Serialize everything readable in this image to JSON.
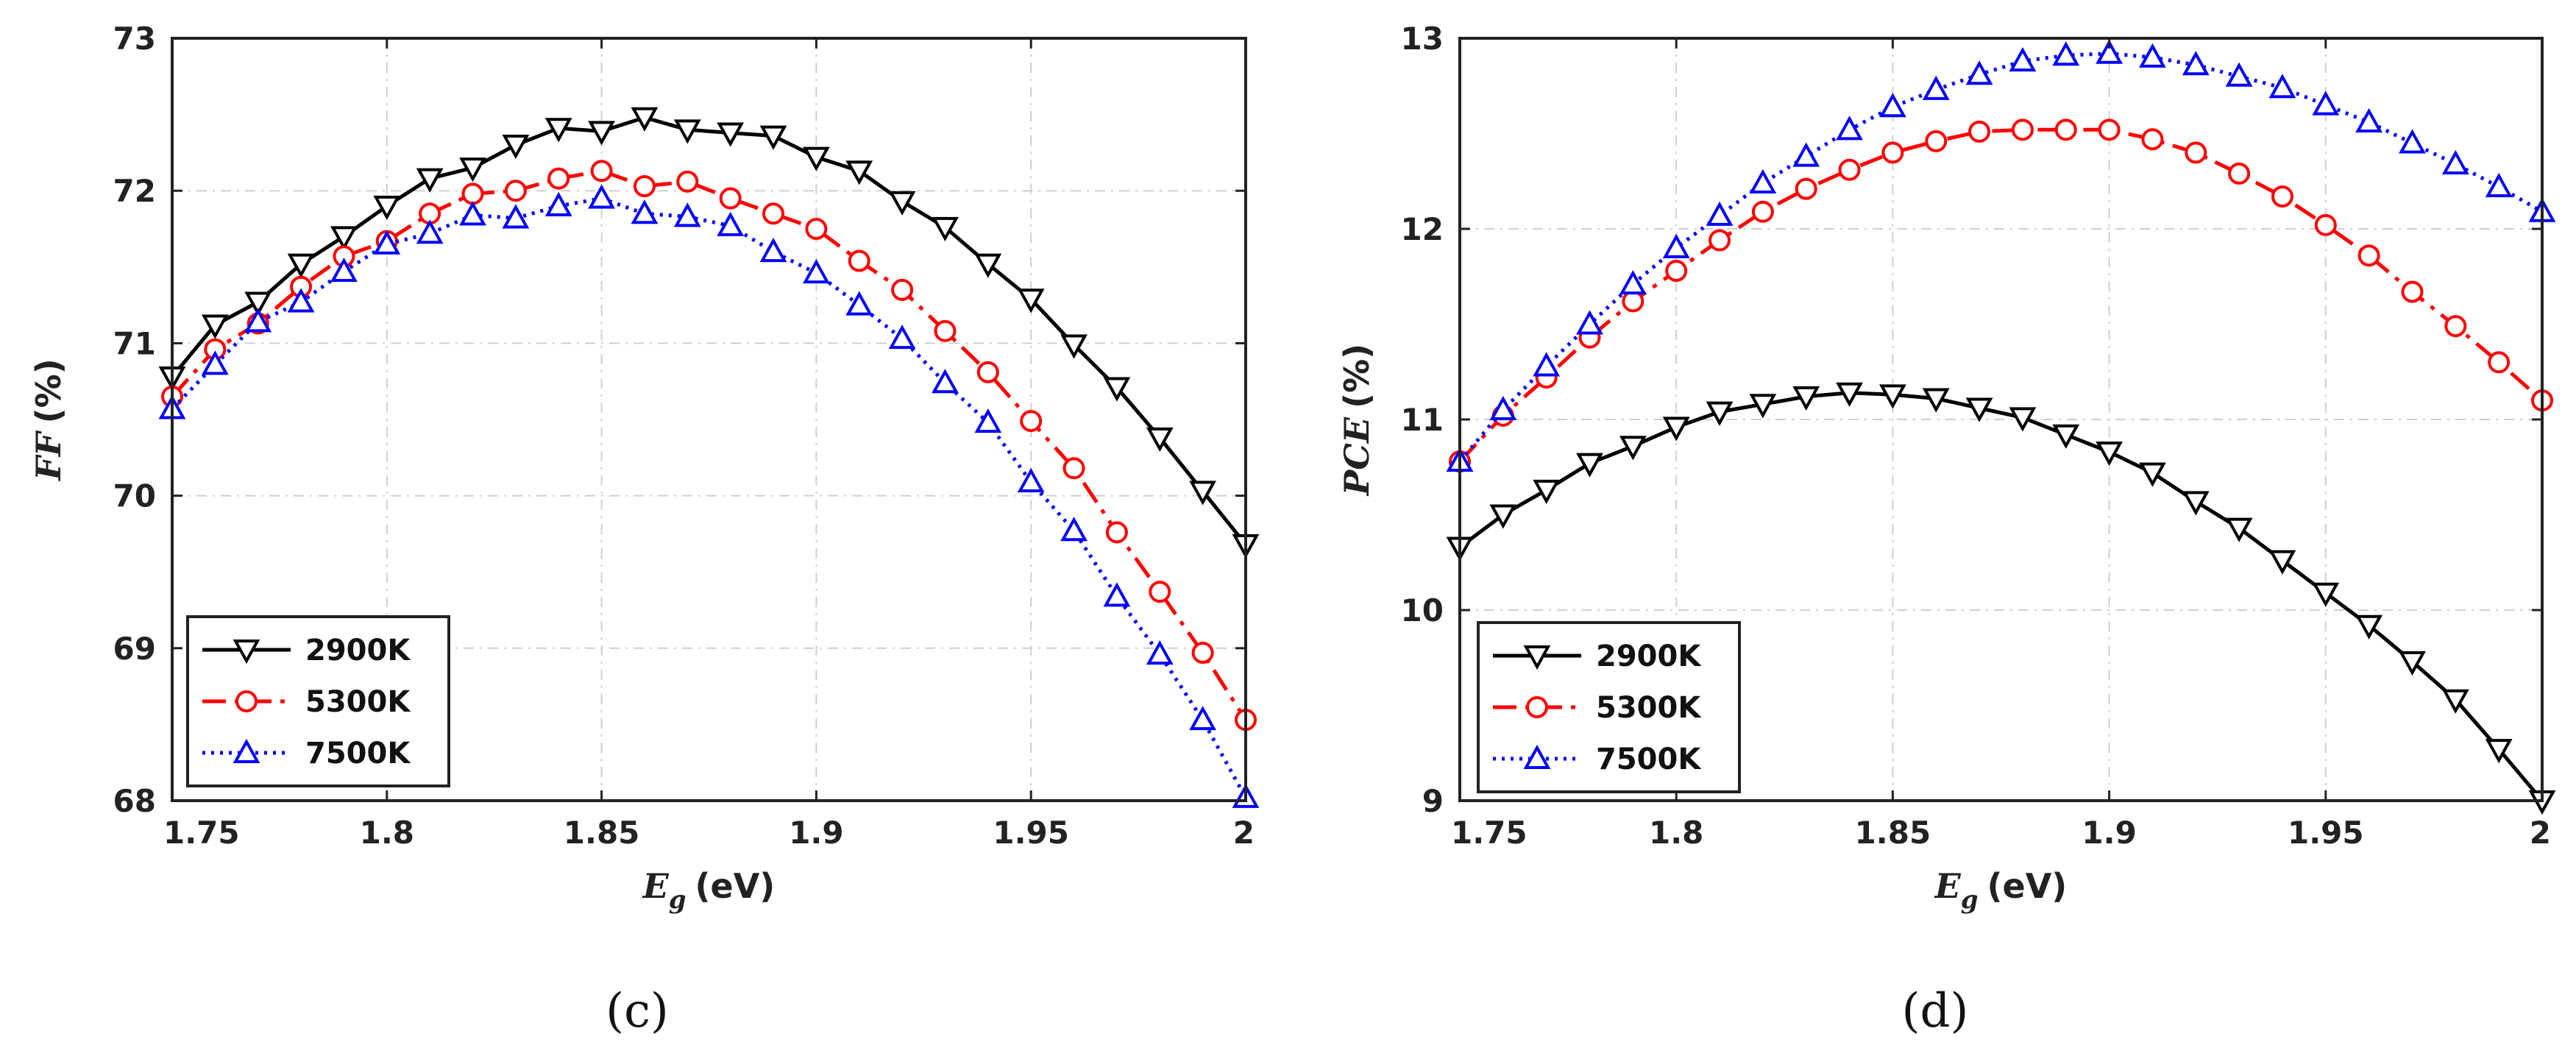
{
  "chart_data": [
    {
      "type": "line",
      "panel": "(c)",
      "ylabel_main": "FF",
      "ylabel_unit": "(%)",
      "xlabel_main": "E",
      "xlabel_sub": "g",
      "xlabel_unit": "(eV)",
      "xlim": [
        1.75,
        2.0
      ],
      "ylim": [
        68,
        73
      ],
      "xticks": [
        "1.75",
        "1.8",
        "1.85",
        "1.9",
        "1.95",
        "2"
      ],
      "xtick_values": [
        1.75,
        1.8,
        1.85,
        1.9,
        1.95,
        2.0
      ],
      "yticks": [
        "68",
        "69",
        "70",
        "71",
        "72",
        "73"
      ],
      "ytick_values": [
        68,
        69,
        70,
        71,
        72,
        73
      ],
      "grid": true,
      "legend_position": "bottom-left",
      "x": [
        1.75,
        1.76,
        1.77,
        1.78,
        1.79,
        1.8,
        1.81,
        1.82,
        1.83,
        1.84,
        1.85,
        1.86,
        1.87,
        1.88,
        1.89,
        1.9,
        1.91,
        1.92,
        1.93,
        1.94,
        1.95,
        1.96,
        1.97,
        1.98,
        1.99,
        2.0
      ],
      "series": [
        {
          "name": "2900K",
          "color": "#000000",
          "dash": "solid",
          "marker": "triangle-down",
          "values": [
            70.78,
            71.12,
            71.27,
            71.52,
            71.7,
            71.9,
            72.08,
            72.15,
            72.3,
            72.41,
            72.39,
            72.48,
            72.4,
            72.38,
            72.36,
            72.22,
            72.13,
            71.93,
            71.76,
            71.52,
            71.29,
            70.99,
            70.71,
            70.38,
            70.03,
            69.68
          ]
        },
        {
          "name": "5300K",
          "color": "#ff0000",
          "dash": "dashdot",
          "marker": "circle",
          "values": [
            70.65,
            70.96,
            71.13,
            71.37,
            71.57,
            71.67,
            71.85,
            71.98,
            72.0,
            72.08,
            72.13,
            72.03,
            72.06,
            71.95,
            71.85,
            71.75,
            71.54,
            71.35,
            71.08,
            70.81,
            70.49,
            70.18,
            69.76,
            69.37,
            68.97,
            68.53
          ]
        },
        {
          "name": "7500K",
          "color": "#0000ff",
          "dash": "dotted",
          "marker": "triangle-up",
          "values": [
            70.57,
            70.86,
            71.14,
            71.27,
            71.47,
            71.65,
            71.72,
            71.84,
            71.82,
            71.9,
            71.95,
            71.85,
            71.83,
            71.77,
            71.6,
            71.46,
            71.25,
            71.03,
            70.74,
            70.48,
            70.09,
            69.77,
            69.34,
            68.96,
            68.53,
            68.02
          ]
        }
      ]
    },
    {
      "type": "line",
      "panel": "(d)",
      "ylabel_main": "PCE",
      "ylabel_unit": "(%)",
      "xlabel_main": "E",
      "xlabel_sub": "g",
      "xlabel_unit": "(eV)",
      "xlim": [
        1.75,
        2.0
      ],
      "ylim": [
        9,
        13
      ],
      "xticks": [
        "1.75",
        "1.8",
        "1.85",
        "1.9",
        "1.95",
        "2"
      ],
      "xtick_values": [
        1.75,
        1.8,
        1.85,
        1.9,
        1.95,
        2.0
      ],
      "yticks": [
        "9",
        "10",
        "11",
        "12",
        "13"
      ],
      "ytick_values": [
        9,
        10,
        11,
        12,
        13
      ],
      "grid": true,
      "legend_position": "bottom-left",
      "x": [
        1.75,
        1.76,
        1.77,
        1.78,
        1.79,
        1.8,
        1.81,
        1.82,
        1.83,
        1.84,
        1.85,
        1.86,
        1.87,
        1.88,
        1.89,
        1.9,
        1.91,
        1.92,
        1.93,
        1.94,
        1.95,
        1.96,
        1.97,
        1.98,
        1.99,
        2.0
      ],
      "series": [
        {
          "name": "2900K",
          "color": "#000000",
          "dash": "solid",
          "marker": "triangle-down",
          "values": [
            10.33,
            10.5,
            10.63,
            10.77,
            10.86,
            10.96,
            11.04,
            11.08,
            11.12,
            11.14,
            11.13,
            11.11,
            11.06,
            11.01,
            10.92,
            10.83,
            10.72,
            10.57,
            10.43,
            10.26,
            10.09,
            9.92,
            9.73,
            9.53,
            9.27,
            9.0
          ]
        },
        {
          "name": "5300K",
          "color": "#ff0000",
          "dash": "dashdot",
          "marker": "circle",
          "values": [
            10.78,
            11.02,
            11.22,
            11.43,
            11.62,
            11.78,
            11.94,
            12.09,
            12.21,
            12.31,
            12.4,
            12.46,
            12.51,
            12.52,
            12.52,
            12.52,
            12.47,
            12.4,
            12.29,
            12.17,
            12.02,
            11.86,
            11.67,
            11.49,
            11.3,
            11.1
          ]
        },
        {
          "name": "7500K",
          "color": "#0000ff",
          "dash": "dotted",
          "marker": "triangle-up",
          "values": [
            10.78,
            11.05,
            11.28,
            11.5,
            11.71,
            11.9,
            12.07,
            12.24,
            12.38,
            12.52,
            12.64,
            12.73,
            12.81,
            12.88,
            12.91,
            12.92,
            12.9,
            12.86,
            12.8,
            12.74,
            12.65,
            12.56,
            12.45,
            12.34,
            12.22,
            12.09
          ]
        }
      ]
    }
  ]
}
